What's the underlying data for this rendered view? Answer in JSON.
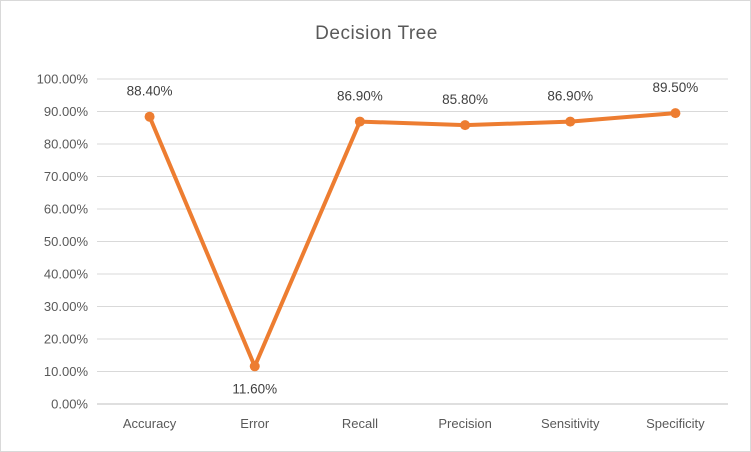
{
  "window": {
    "background": "#ffffff",
    "border_color": "#d9d9d9"
  },
  "chart_data": {
    "type": "line",
    "title": "Decision Tree",
    "xlabel": "",
    "ylabel": "",
    "categories": [
      "Accuracy",
      "Error",
      "Recall",
      "Precision",
      "Sensitivity",
      "Specificity"
    ],
    "series": [
      {
        "name": "Decision Tree",
        "values": [
          88.4,
          11.6,
          86.9,
          85.8,
          86.9,
          89.5
        ]
      }
    ],
    "data_labels": [
      "88.40%",
      "11.60%",
      "86.90%",
      "85.80%",
      "86.90%",
      "89.50%"
    ],
    "data_label_positions": [
      "above",
      "below",
      "above",
      "above",
      "above",
      "above"
    ],
    "ylim": [
      0,
      100
    ],
    "ytick_labels": [
      "0.00%",
      "10.00%",
      "20.00%",
      "30.00%",
      "40.00%",
      "50.00%",
      "60.00%",
      "70.00%",
      "80.00%",
      "90.00%",
      "100.00%"
    ],
    "grid": true,
    "legend": "none",
    "marker": "circle",
    "colors": {
      "line": "#ED7D31",
      "marker": "#ED7D31",
      "gridline": "#D9D9D9",
      "axis_line": "#BFBFBF",
      "title_text": "#595959",
      "axis_text": "#595959",
      "data_label_text": "#404040",
      "background": "#FFFFFF"
    }
  }
}
